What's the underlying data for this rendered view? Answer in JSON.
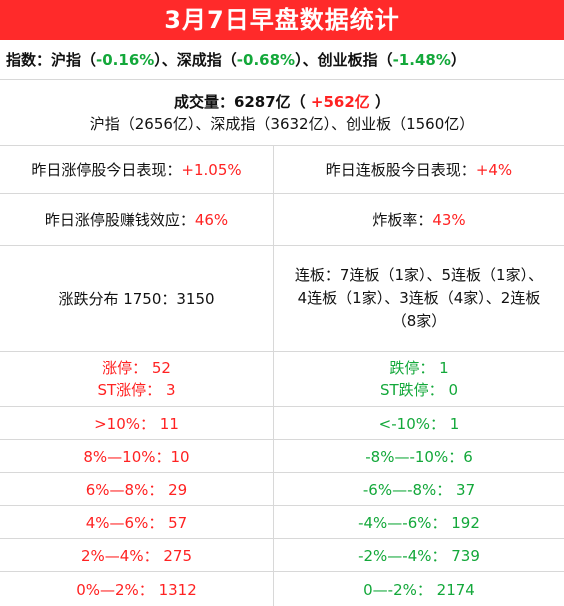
{
  "title": "3月7日早盘数据统计",
  "indices": {
    "lead": "指数：沪指（",
    "sh": "-0.16%",
    "mid1": "）、深成指（",
    "sz": "-0.68%",
    "mid2": "）、创业板指（",
    "cy": "-1.48%",
    "tail": "）"
  },
  "volume": {
    "label": "成交量：6287亿（",
    "change": "+562亿",
    "tail": "）",
    "detail": "沪指（2656亿）、深成指（3632亿）、创业板（1560亿）"
  },
  "limit_up_perf": {
    "label": "昨日涨停股今日表现：",
    "value": "+1.05%"
  },
  "consec_perf": {
    "label": "昨日连板股今日表现：",
    "value": "+4%"
  },
  "limit_up_profit": {
    "label": "昨日涨停股赚钱效应：",
    "value": "46%"
  },
  "break_rate": {
    "label": "炸板率：",
    "value": "43%"
  },
  "distribution": {
    "label": "涨跌分布 1750：3150"
  },
  "consec_boards": {
    "line1": "连板：7连板（1家）、5连板（1家）、",
    "line2": "4连板（1家）、3连板（4家）、2连板",
    "line3": "（8家）"
  },
  "up_counts": {
    "limit_up": "涨停：  52",
    "st_limit_up": "ST涨停：  3",
    "gt10": ">10%：  11",
    "r8_10": "8%—10%：10",
    "r6_8": "6%—8%：  29",
    "r4_6": "4%—6%：  57",
    "r2_4": "2%—4%：  275",
    "r0_2": "0%—2%：  1312"
  },
  "down_counts": {
    "limit_down": "跌停：  1",
    "st_limit_down": "ST跌停：  0",
    "lt10": "<-10%：  1",
    "r8_10": "-8%—-10%：6",
    "r6_8": "-6%—-8%：  37",
    "r4_6": "-4%—-6%：  192",
    "r2_4": "-2%—-4%：  739",
    "r0_2": "0—-2%：  2174"
  },
  "colors": {
    "header_bg": "#ff2a2a",
    "up": "#ff2222",
    "down": "#13a83a"
  }
}
